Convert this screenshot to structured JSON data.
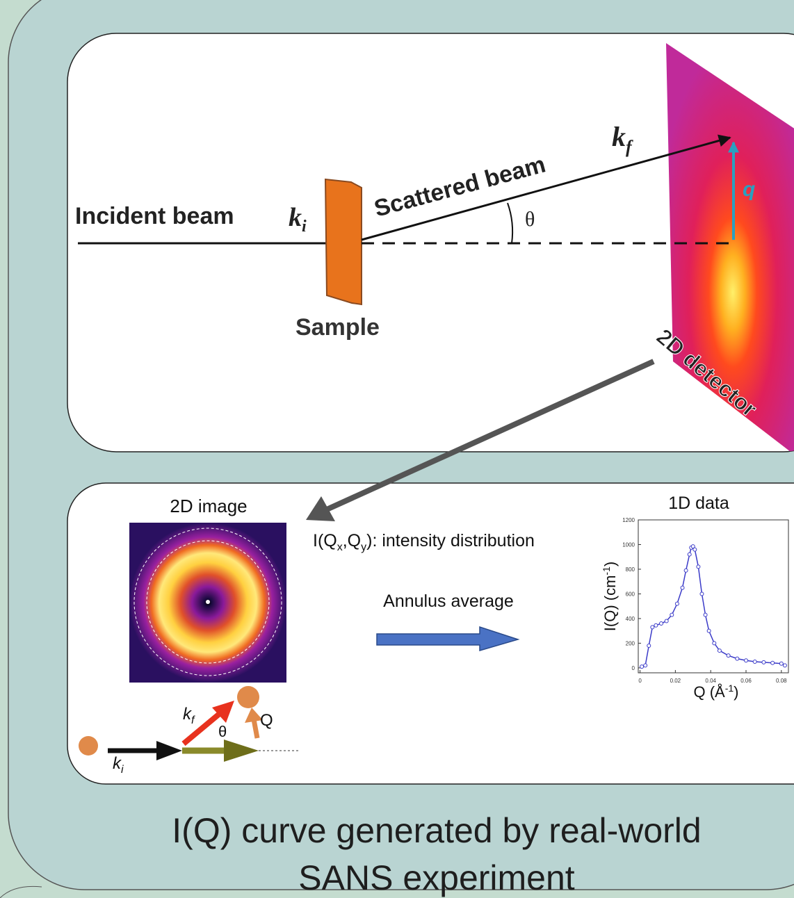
{
  "top_panel": {
    "incident_label": "Incident beam",
    "ki": {
      "base": "k",
      "sub": "i"
    },
    "scattered_label": "Scattered beam",
    "kf": {
      "base": "k",
      "sub": "f"
    },
    "theta": "θ",
    "sample_label": "Sample",
    "detector_label": "2D detector",
    "q": "q"
  },
  "bottom_panel": {
    "image_title": "2D image",
    "intensity": {
      "parts": [
        "I(Q",
        "x",
        ",Q",
        "y",
        "): intensity distribution"
      ]
    },
    "annulus": "Annulus average",
    "vector_diagram": {
      "kf": {
        "base": "k",
        "sub": "f"
      },
      "theta": "θ",
      "Q": "Q",
      "ki": {
        "base": "k",
        "sub": "i"
      }
    },
    "plot": {
      "title": "1D data",
      "y_label": [
        "I(Q) (cm",
        "-1",
        ")"
      ],
      "x_label": [
        "Q (Å",
        "-1",
        ")"
      ],
      "xlim": [
        -0.001,
        0.084
      ],
      "ylim": [
        -40,
        1200
      ],
      "xticks": [
        0,
        0.02,
        0.04,
        0.06,
        0.08
      ],
      "yticks": [
        0,
        200,
        400,
        600,
        800,
        1000,
        1200
      ],
      "x": [
        0.001,
        0.003,
        0.005,
        0.007,
        0.009,
        0.012,
        0.015,
        0.018,
        0.021,
        0.024,
        0.026,
        0.028,
        0.029,
        0.03,
        0.031,
        0.033,
        0.035,
        0.037,
        0.039,
        0.042,
        0.045,
        0.05,
        0.055,
        0.06,
        0.065,
        0.07,
        0.075,
        0.08,
        0.082
      ],
      "values": [
        10,
        20,
        180,
        330,
        345,
        360,
        380,
        430,
        520,
        650,
        790,
        920,
        975,
        985,
        960,
        820,
        600,
        430,
        300,
        200,
        140,
        100,
        75,
        60,
        50,
        45,
        40,
        35,
        20
      ]
    }
  },
  "caption": [
    "I(Q) curve generated by real-world",
    "SANS experiment"
  ]
}
